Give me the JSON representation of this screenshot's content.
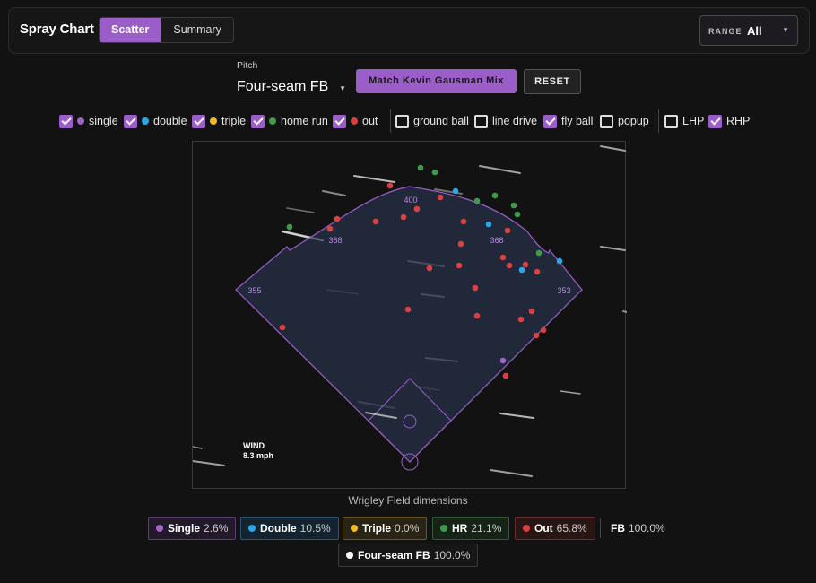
{
  "header": {
    "title": "Spray Chart",
    "tabs": [
      {
        "label": "Scatter",
        "active": true
      },
      {
        "label": "Summary",
        "active": false
      }
    ],
    "range": {
      "label": "RANGE",
      "value": "All"
    }
  },
  "controls": {
    "pitch_label": "Pitch",
    "pitch_value": "Four-seam FB",
    "match_button": "Match Kevin Gausman Mix",
    "reset_button": "RESET"
  },
  "filters": {
    "hit_types": [
      {
        "label": "single",
        "checked": true,
        "color": "#a064c8"
      },
      {
        "label": "double",
        "checked": true,
        "color": "#29a8e8"
      },
      {
        "label": "triple",
        "checked": true,
        "color": "#f1b92a"
      },
      {
        "label": "home run",
        "checked": true,
        "color": "#3f9a4a"
      },
      {
        "label": "out",
        "checked": true,
        "color": "#d94040"
      }
    ],
    "batted_ball": [
      {
        "label": "ground ball",
        "checked": false
      },
      {
        "label": "line drive",
        "checked": false
      },
      {
        "label": "fly ball",
        "checked": true
      },
      {
        "label": "popup",
        "checked": false
      }
    ],
    "handedness": [
      {
        "label": "LHP",
        "checked": false
      },
      {
        "label": "RHP",
        "checked": true
      }
    ]
  },
  "field": {
    "distances": {
      "center": "400",
      "left_center": "368",
      "right_center": "368",
      "left": "355",
      "right": "353"
    },
    "wind_label": "WIND",
    "wind_speed": "8.3 mph",
    "caption": "Wrigley Field dimensions"
  },
  "summary": {
    "items": [
      {
        "label": "Single",
        "value": "2.6%",
        "color": "#a064c8"
      },
      {
        "label": "Double",
        "value": "10.5%",
        "color": "#29a8e8"
      },
      {
        "label": "Triple",
        "value": "0.0%",
        "color": "#f1b92a"
      },
      {
        "label": "HR",
        "value": "21.1%",
        "color": "#3f9a4a"
      },
      {
        "label": "Out",
        "value": "65.8%",
        "color": "#d94040"
      }
    ],
    "total_label": "FB",
    "total_value": "100.0%",
    "pitch_label": "Four-seam FB",
    "pitch_value": "100.0%"
  },
  "colors": {
    "accent": "#9b5ec9"
  }
}
